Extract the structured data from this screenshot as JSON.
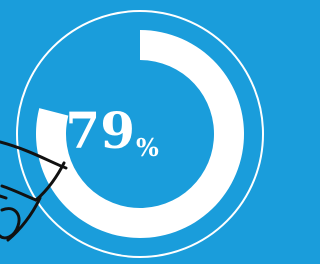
{
  "chart_data": {
    "type": "donut",
    "values": [
      79
    ],
    "unit": "%",
    "ylim": [
      0,
      100
    ],
    "color": "#ffffff"
  }
}
